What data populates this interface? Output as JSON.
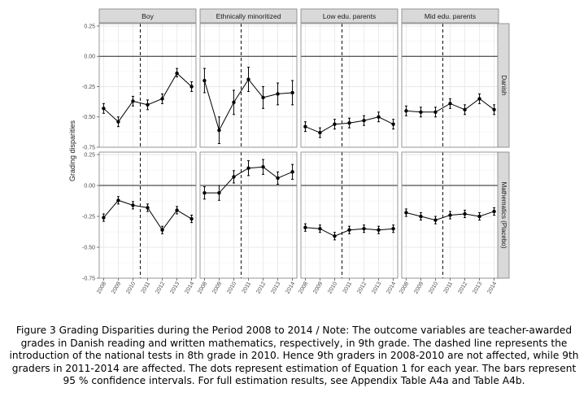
{
  "chart_data": {
    "type": "line",
    "ylabel": "Grading disparities",
    "columns": [
      "Boy",
      "Ethnically minoritized",
      "Low edu. parents",
      "Mid edu. parents"
    ],
    "rows": [
      "Danish",
      "Mathematics (Placebo)"
    ],
    "x": [
      2008,
      2009,
      2010,
      2011,
      2012,
      2013,
      2014
    ],
    "x_tick_labels": [
      "2008",
      "2009",
      "2010",
      "2011",
      "2012",
      "2013",
      "2014"
    ],
    "reference_line_x": 2010.5,
    "reference_line_y": 0,
    "row_scales": [
      {
        "ylim": [
          -0.75,
          0.27
        ],
        "ticks": [
          0.25,
          0,
          -0.25,
          -0.5,
          -0.75
        ],
        "tick_labels": [
          "0.25",
          "0.00",
          "-0.25",
          "-0.50",
          "-0.75"
        ]
      },
      {
        "ylim": [
          -0.75,
          0.27
        ],
        "ticks": [
          0.25,
          0,
          -0.25,
          -0.5,
          -0.75
        ],
        "tick_labels": [
          "0.25",
          "0.00",
          "-0.25",
          "-0.50",
          "-0.75"
        ]
      }
    ],
    "panels": [
      {
        "row": 0,
        "col": 0,
        "y": [
          -0.43,
          -0.54,
          -0.37,
          -0.4,
          -0.35,
          -0.14,
          -0.25
        ],
        "ci_low": [
          -0.47,
          -0.58,
          -0.41,
          -0.44,
          -0.39,
          -0.17,
          -0.29
        ],
        "ci_high": [
          -0.39,
          -0.5,
          -0.33,
          -0.36,
          -0.31,
          -0.1,
          -0.21
        ]
      },
      {
        "row": 0,
        "col": 1,
        "y": [
          -0.2,
          -0.61,
          -0.38,
          -0.19,
          -0.34,
          -0.31,
          -0.3
        ],
        "ci_low": [
          -0.3,
          -0.72,
          -0.48,
          -0.29,
          -0.43,
          -0.4,
          -0.4
        ],
        "ci_high": [
          -0.1,
          -0.5,
          -0.28,
          -0.09,
          -0.25,
          -0.22,
          -0.2
        ]
      },
      {
        "row": 0,
        "col": 2,
        "y": [
          -0.58,
          -0.63,
          -0.56,
          -0.55,
          -0.53,
          -0.5,
          -0.56
        ],
        "ci_low": [
          -0.62,
          -0.67,
          -0.6,
          -0.59,
          -0.57,
          -0.54,
          -0.6
        ],
        "ci_high": [
          -0.54,
          -0.59,
          -0.52,
          -0.51,
          -0.49,
          -0.46,
          -0.52
        ]
      },
      {
        "row": 0,
        "col": 3,
        "y": [
          -0.45,
          -0.46,
          -0.46,
          -0.39,
          -0.44,
          -0.35,
          -0.44
        ],
        "ci_low": [
          -0.49,
          -0.5,
          -0.5,
          -0.43,
          -0.48,
          -0.39,
          -0.48
        ],
        "ci_high": [
          -0.41,
          -0.42,
          -0.42,
          -0.35,
          -0.4,
          -0.31,
          -0.4
        ]
      },
      {
        "row": 1,
        "col": 0,
        "y": [
          -0.26,
          -0.12,
          -0.16,
          -0.18,
          -0.36,
          -0.2,
          -0.27
        ],
        "ci_low": [
          -0.29,
          -0.15,
          -0.19,
          -0.21,
          -0.39,
          -0.23,
          -0.3
        ],
        "ci_high": [
          -0.23,
          -0.09,
          -0.13,
          -0.15,
          -0.33,
          -0.17,
          -0.24
        ]
      },
      {
        "row": 1,
        "col": 1,
        "y": [
          -0.06,
          -0.06,
          0.07,
          0.14,
          0.15,
          0.06,
          0.11
        ],
        "ci_low": [
          -0.11,
          -0.12,
          0.02,
          0.08,
          0.09,
          0.01,
          0.05
        ],
        "ci_high": [
          -0.01,
          0.0,
          0.12,
          0.2,
          0.21,
          0.11,
          0.17
        ]
      },
      {
        "row": 1,
        "col": 2,
        "y": [
          -0.34,
          -0.35,
          -0.41,
          -0.36,
          -0.35,
          -0.36,
          -0.35
        ],
        "ci_low": [
          -0.37,
          -0.38,
          -0.44,
          -0.39,
          -0.38,
          -0.39,
          -0.38
        ],
        "ci_high": [
          -0.31,
          -0.32,
          -0.38,
          -0.33,
          -0.32,
          -0.33,
          -0.32
        ]
      },
      {
        "row": 1,
        "col": 3,
        "y": [
          -0.22,
          -0.25,
          -0.28,
          -0.24,
          -0.23,
          -0.25,
          -0.21
        ],
        "ci_low": [
          -0.25,
          -0.28,
          -0.31,
          -0.27,
          -0.26,
          -0.28,
          -0.24
        ],
        "ci_high": [
          -0.19,
          -0.22,
          -0.25,
          -0.21,
          -0.2,
          -0.22,
          -0.18
        ]
      }
    ],
    "grid": true,
    "facet_strips": true
  },
  "caption": {
    "text": "Figure 3 Grading Disparities during the Period 2008 to 2014 / Note: The outcome variables are teacher-awarded grades in Danish reading and written mathematics, respectively, in 9th grade. The dashed line represents the introduction of the national tests in 8th grade in 2010. Hence 9th graders in 2008-2010 are not affected, while 9th graders in 2011-2014 are affected. The dots represent estimation of Equation 1 for each year. The bars represent 95 % confidence intervals. For full estimation results, see Appendix Table A4a and Table A4b."
  }
}
